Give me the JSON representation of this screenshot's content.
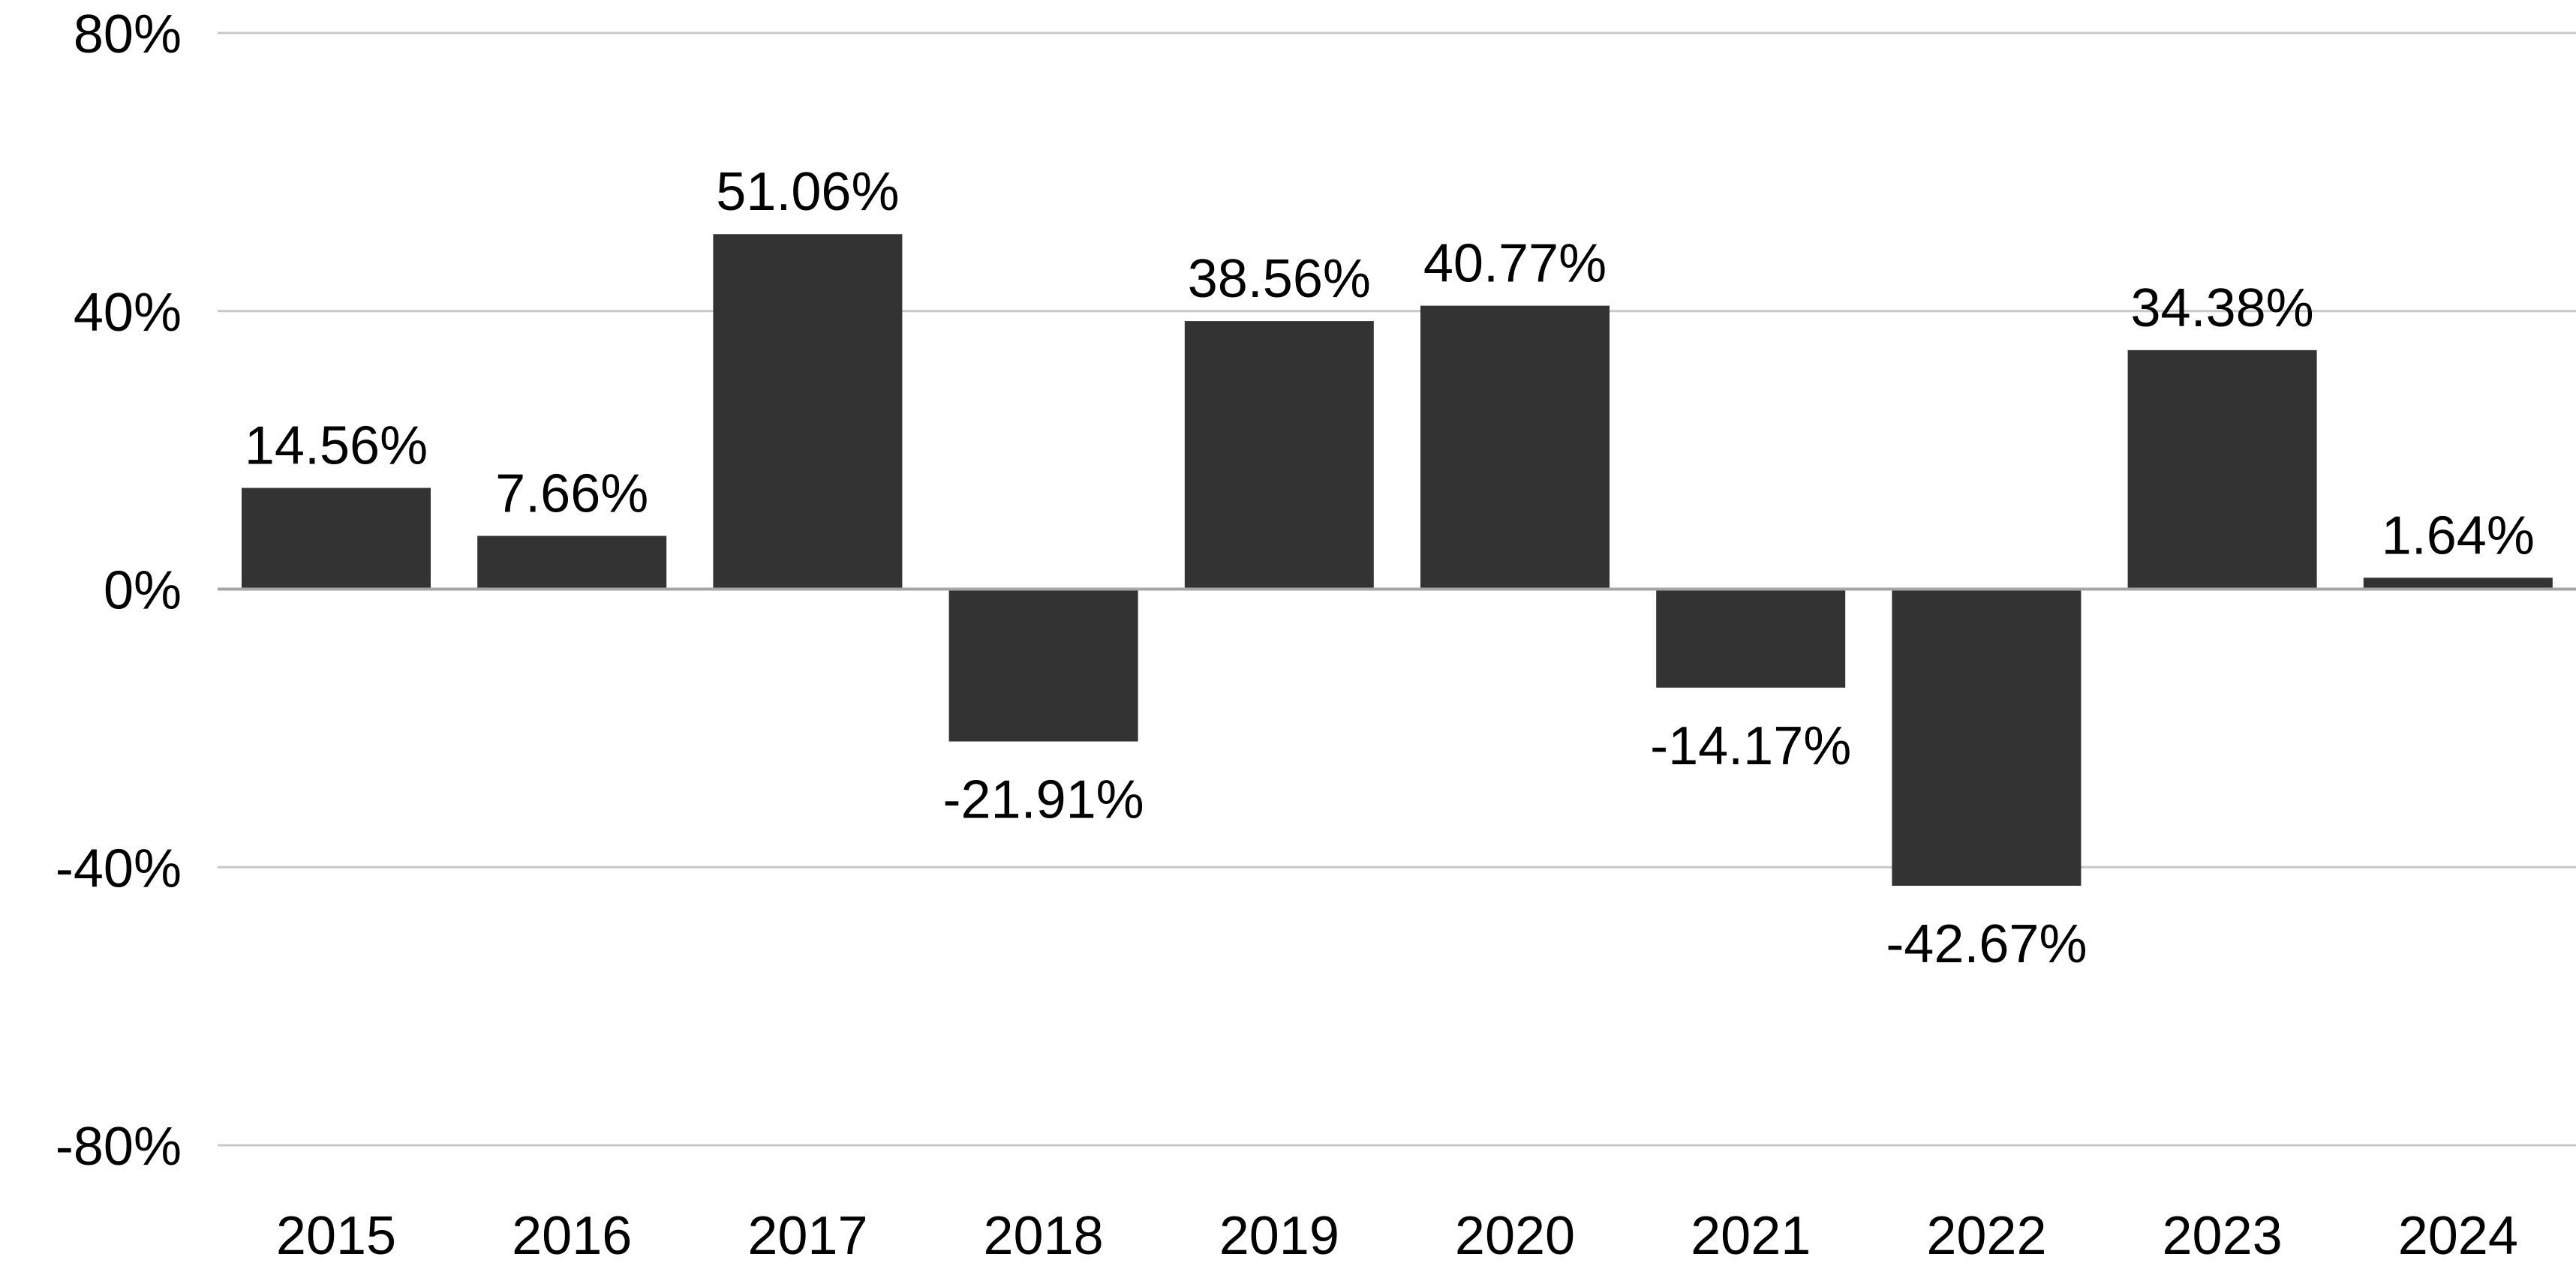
{
  "chart_data": {
    "type": "bar",
    "title": "",
    "xlabel": "",
    "ylabel": "",
    "categories": [
      "2015",
      "2016",
      "2017",
      "2018",
      "2019",
      "2020",
      "2021",
      "2022",
      "2023",
      "2024"
    ],
    "values": [
      14.56,
      7.66,
      51.06,
      -21.91,
      38.56,
      40.77,
      -14.17,
      -42.67,
      34.38,
      1.64
    ],
    "data_labels": [
      "14.56%",
      "7.66%",
      "51.06%",
      "-21.91%",
      "38.56%",
      "40.77%",
      "-14.17%",
      "-42.67%",
      "34.38%",
      "1.64%"
    ],
    "ylim": [
      -80,
      80
    ],
    "yticks": [
      80,
      40,
      0,
      -40,
      -80
    ],
    "ytick_labels": [
      "80%",
      "40%",
      "0%",
      "-40%",
      "-80%"
    ],
    "grid": true,
    "legend": "none",
    "colors": {
      "bar": "#333333",
      "grid": "#c8c8c8",
      "zero_line": "#a6a6a6",
      "text": "#000000"
    }
  }
}
